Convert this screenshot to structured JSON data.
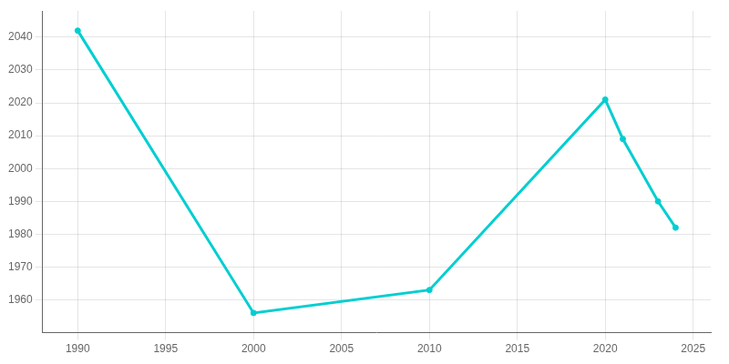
{
  "chart_data": {
    "type": "line",
    "x": [
      1990,
      2000,
      2010,
      2020,
      2021,
      2023,
      2024
    ],
    "values": [
      2042,
      1956,
      1963,
      2021,
      2009,
      1990,
      1982
    ],
    "color": "#00CED1",
    "marker": "o",
    "xlim": [
      1988,
      2026
    ],
    "ylim": [
      1950,
      2048
    ],
    "xticks": [
      1990,
      1995,
      2000,
      2005,
      2010,
      2015,
      2020,
      2025
    ],
    "yticks": [
      1960,
      1970,
      1980,
      1990,
      2000,
      2010,
      2020,
      2030,
      2040
    ],
    "grid": true
  }
}
